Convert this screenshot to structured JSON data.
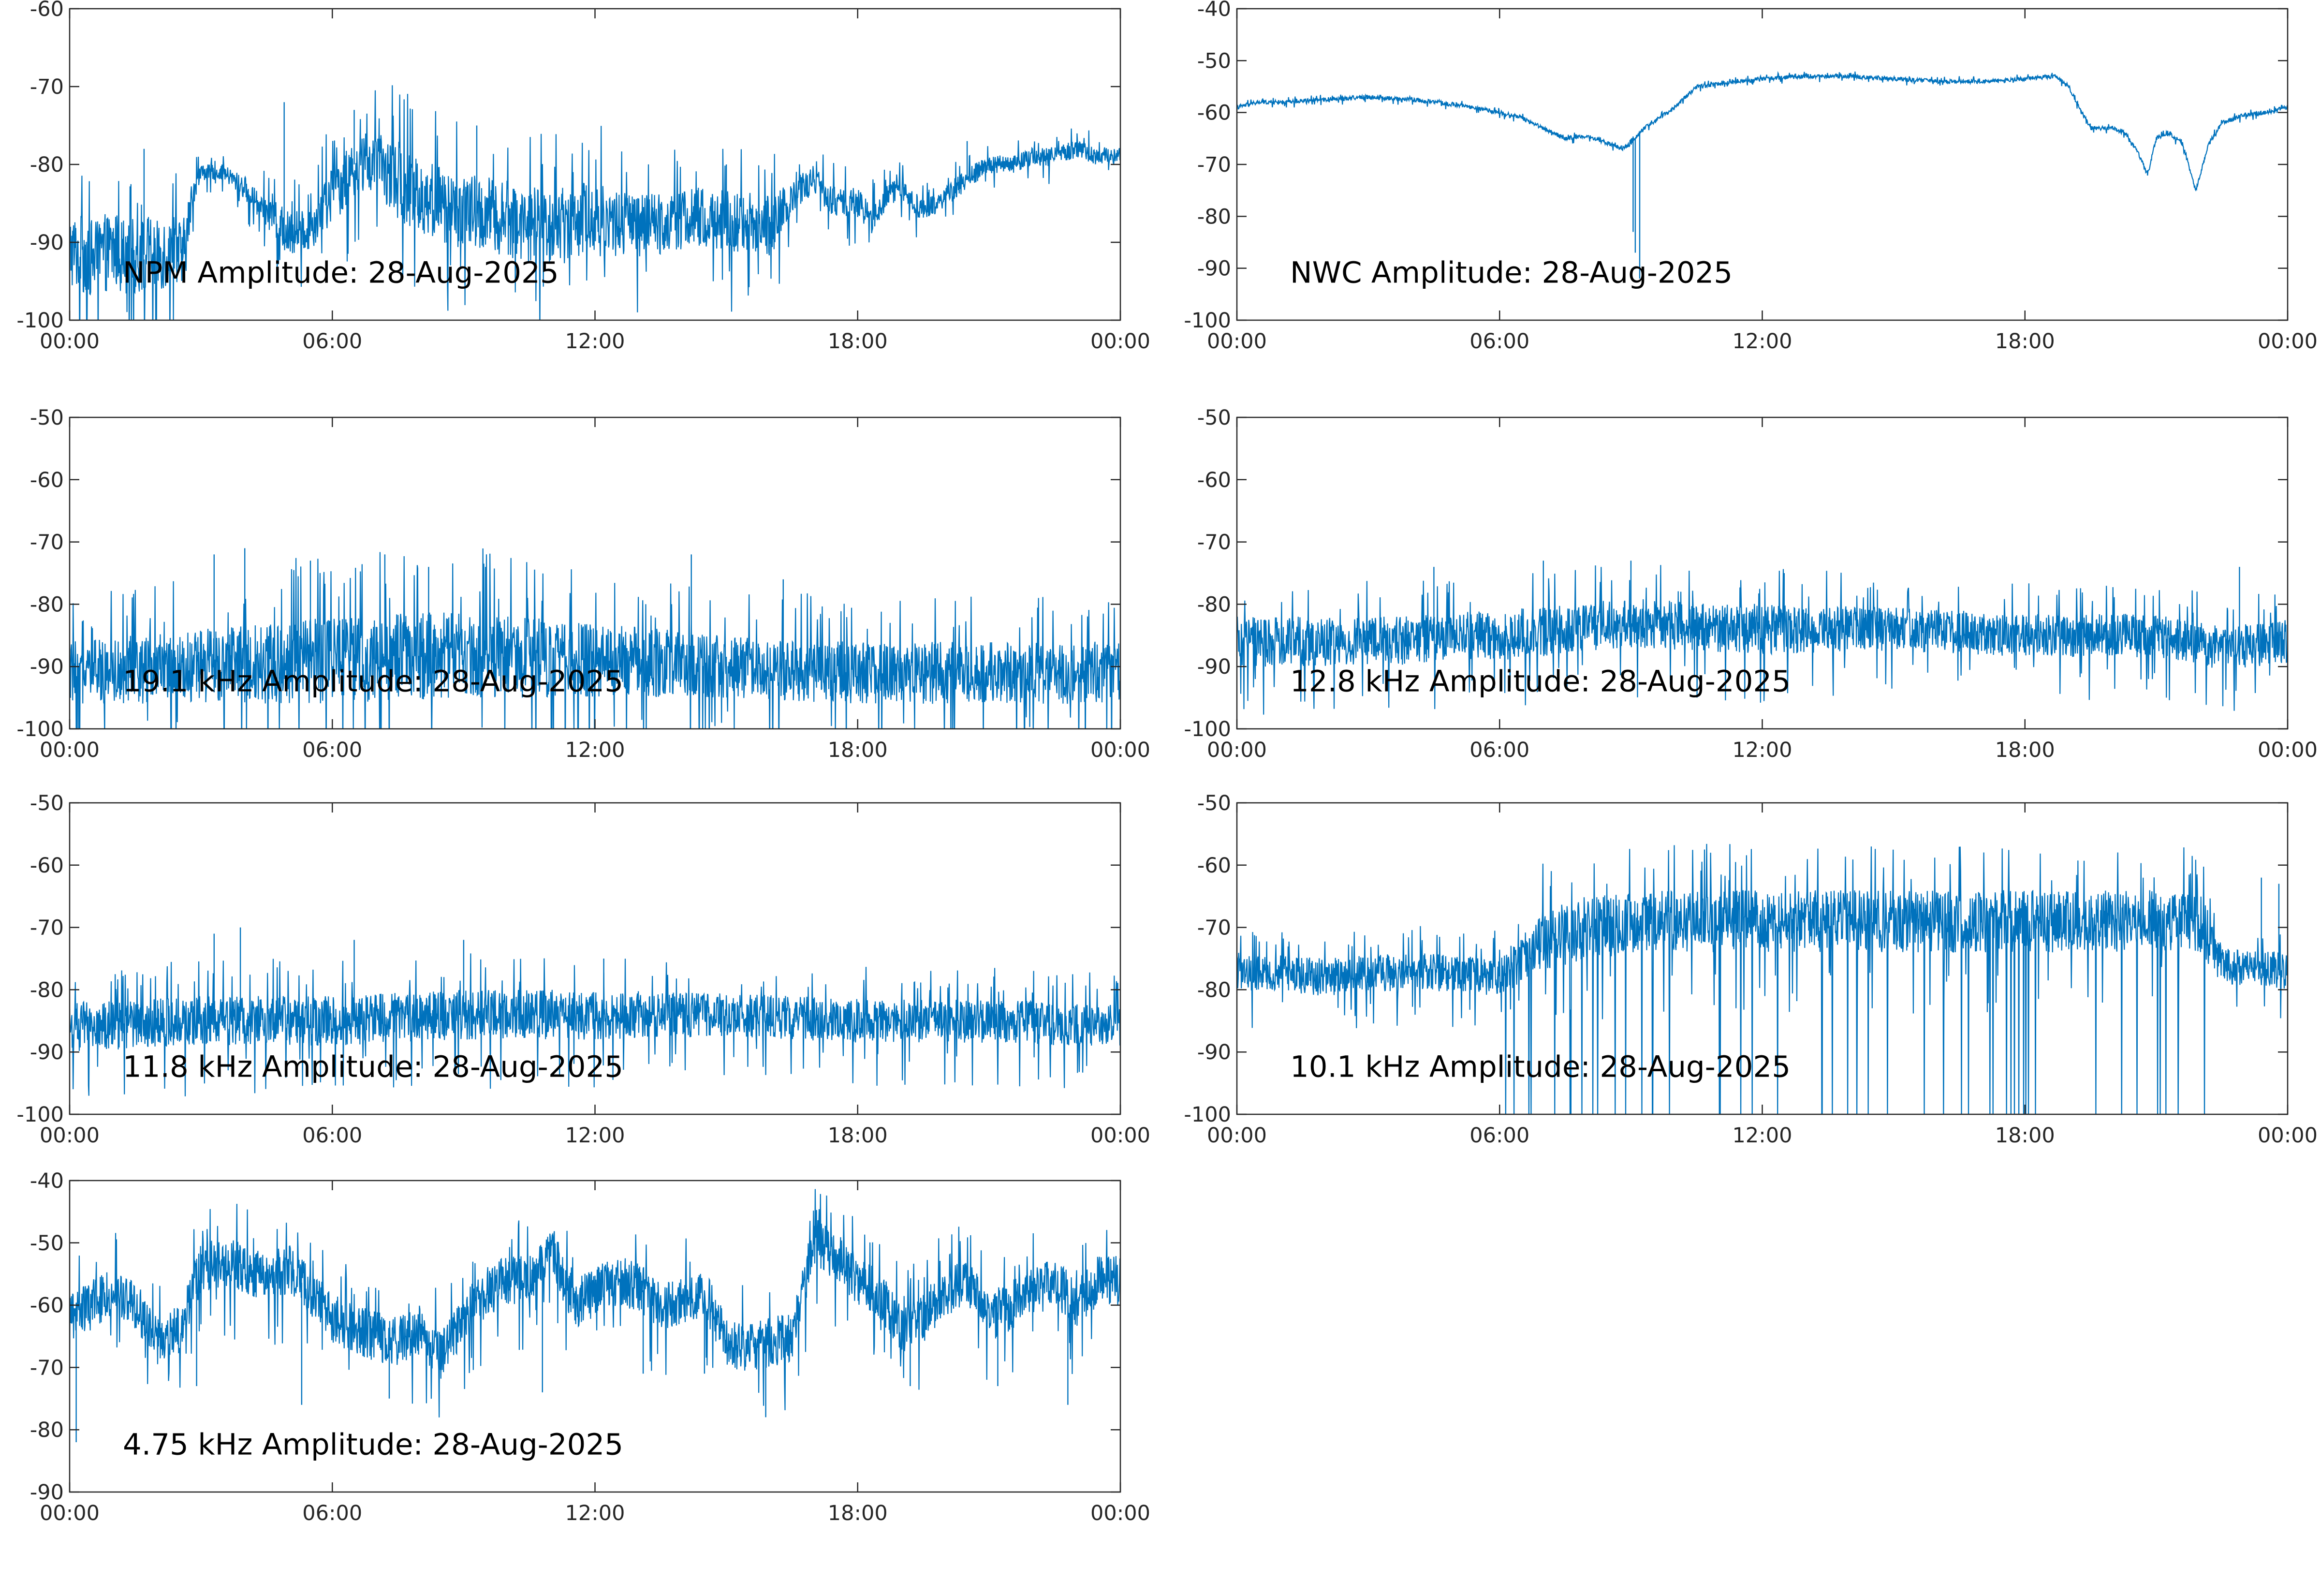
{
  "colors": {
    "series": "#0072BD",
    "axes": "#262626",
    "background": "#ffffff"
  },
  "chart_data": [
    {
      "type": "line",
      "annotation": "NPM Amplitude: 28-Aug-2025",
      "xlim": [
        0,
        24
      ],
      "xticks": [
        "00:00",
        "06:00",
        "12:00",
        "18:00",
        "00:00"
      ],
      "ylim": [
        -100,
        -60
      ],
      "yticks": [
        -100,
        -90,
        -80,
        -70,
        -60
      ],
      "grid": false,
      "series": [
        {
          "x": [
            0,
            0.5,
            1,
            1.5,
            2,
            2.6,
            2.8,
            3,
            3.5,
            4,
            4.5,
            5,
            5.5,
            6,
            6.5,
            7,
            7.5,
            8,
            8.5,
            9,
            10,
            11,
            12,
            13,
            14,
            15,
            16,
            16.5,
            17,
            17.5,
            18,
            18.3,
            18.7,
            19,
            19.5,
            20,
            20.5,
            21,
            21.5,
            22,
            22.5,
            23,
            23.5,
            24
          ],
          "y": [
            -91,
            -92,
            -91,
            -92,
            -91,
            -92,
            -84,
            -81,
            -81,
            -83,
            -86,
            -89,
            -88,
            -84,
            -80,
            -80,
            -82,
            -84,
            -85,
            -86,
            -87,
            -88,
            -87,
            -88,
            -87,
            -87,
            -88,
            -84,
            -82,
            -85,
            -85,
            -87,
            -84,
            -83,
            -86,
            -84,
            -82,
            -80,
            -80,
            -79,
            -79,
            -78,
            -79,
            -79
          ],
          "noise": [
            5,
            5,
            5,
            5,
            5,
            5,
            2,
            1,
            1,
            1.5,
            2,
            3,
            3,
            4,
            4,
            4,
            5,
            5,
            5,
            5,
            5,
            5,
            5,
            4,
            4,
            4,
            4,
            2,
            2,
            2,
            2,
            2,
            1.5,
            1.5,
            1.5,
            1.5,
            1.5,
            1.2,
            1.2,
            1.2,
            1.2,
            1.2,
            1.2,
            1.2
          ],
          "spikes": [
            [
              1.7,
              -78
            ],
            [
              4.9,
              -72
            ],
            [
              6.5,
              -73
            ],
            [
              9.3,
              -75
            ],
            [
              15,
              -80
            ],
            [
              20.5,
              -77
            ]
          ]
        }
      ]
    },
    {
      "type": "line",
      "annotation": "NWC Amplitude: 28-Aug-2025",
      "xlim": [
        0,
        24
      ],
      "xticks": [
        "00:00",
        "06:00",
        "12:00",
        "18:00",
        "00:00"
      ],
      "ylim": [
        -100,
        -40
      ],
      "yticks": [
        -100,
        -90,
        -80,
        -70,
        -60,
        -50,
        -40
      ],
      "grid": false,
      "series": [
        {
          "x": [
            0,
            0.5,
            1,
            2,
            3,
            4,
            5,
            6,
            6.5,
            7,
            7.5,
            8,
            8.5,
            8.8,
            9,
            9.1,
            9.2,
            9.3,
            9.5,
            10,
            10.5,
            11,
            11.5,
            12,
            13,
            14,
            15,
            16,
            17,
            18,
            18.7,
            19,
            19.3,
            19.5,
            20,
            20.3,
            20.6,
            20.8,
            21,
            21.3,
            21.6,
            21.9,
            22.2,
            22.5,
            23,
            23.5,
            24
          ],
          "y": [
            -59,
            -58,
            -58,
            -57.5,
            -57,
            -57.5,
            -58.5,
            -60,
            -61,
            -63,
            -65,
            -64.5,
            -66,
            -67,
            -66,
            -65,
            -64,
            -63,
            -62,
            -59,
            -55,
            -54.5,
            -54,
            -53.5,
            -53,
            -53,
            -53.5,
            -54,
            -54,
            -53.5,
            -53,
            -55,
            -60,
            -63,
            -63,
            -64,
            -68,
            -72,
            -65,
            -64,
            -66,
            -75,
            -66,
            -62,
            -60.5,
            -60,
            -59
          ],
          "noise": [
            0.4
          ],
          "spikes": [
            [
              9.05,
              -83
            ],
            [
              9.1,
              -87
            ],
            [
              9.2,
              -92
            ]
          ]
        }
      ]
    },
    {
      "type": "line",
      "annotation": "19.1 kHz Amplitude: 28-Aug-2025",
      "xlim": [
        0,
        24
      ],
      "xticks": [
        "00:00",
        "06:00",
        "12:00",
        "18:00",
        "00:00"
      ],
      "ylim": [
        -100,
        -50
      ],
      "yticks": [
        -100,
        -90,
        -80,
        -70,
        -60,
        -50
      ],
      "grid": false,
      "series": [
        {
          "x": [
            0,
            3,
            6,
            9,
            12,
            15,
            18,
            21,
            24
          ],
          "y": [
            -91,
            -90,
            -89,
            -88,
            -89,
            -90,
            -91,
            -91,
            -91
          ],
          "noise": [
            5,
            6,
            7,
            7,
            6,
            5,
            5,
            5,
            5
          ],
          "spikes": [
            [
              3.3,
              -72
            ],
            [
              4,
              -71
            ],
            [
              5.5,
              -73
            ],
            [
              7.2,
              -72
            ],
            [
              8.2,
              -74
            ],
            [
              9.5,
              -74
            ],
            [
              14.2,
              -72
            ],
            [
              16.3,
              -76
            ]
          ]
        }
      ]
    },
    {
      "type": "line",
      "annotation": "12.8 kHz Amplitude: 28-Aug-2025",
      "xlim": [
        0,
        24
      ],
      "xticks": [
        "00:00",
        "06:00",
        "12:00",
        "18:00",
        "00:00"
      ],
      "ylim": [
        -100,
        -50
      ],
      "yticks": [
        -100,
        -90,
        -80,
        -70,
        -60,
        -50
      ],
      "grid": false,
      "series": [
        {
          "x": [
            0,
            3,
            6,
            9,
            12,
            15,
            18,
            21,
            22.5,
            24
          ],
          "y": [
            -86,
            -86,
            -85,
            -83,
            -84,
            -84,
            -85,
            -85,
            -87,
            -86
          ],
          "noise": [
            4,
            4,
            4,
            4,
            4,
            3.5,
            3.5,
            3.5,
            3.5,
            3.5
          ],
          "spikes": [
            [
              4.5,
              -74
            ],
            [
              7,
              -73
            ],
            [
              9,
              -73
            ],
            [
              12.5,
              -75
            ],
            [
              22.9,
              -74
            ]
          ]
        }
      ]
    },
    {
      "type": "line",
      "annotation": "11.8 kHz Amplitude: 28-Aug-2025",
      "xlim": [
        0,
        24
      ],
      "xticks": [
        "00:00",
        "06:00",
        "12:00",
        "18:00",
        "00:00"
      ],
      "ylim": [
        -100,
        -50
      ],
      "yticks": [
        -100,
        -90,
        -80,
        -70,
        -60,
        -50
      ],
      "grid": false,
      "series": [
        {
          "x": [
            0,
            3,
            6,
            9,
            12,
            15,
            18,
            21,
            24
          ],
          "y": [
            -86,
            -85,
            -85,
            -84,
            -84,
            -84,
            -85,
            -85,
            -86
          ],
          "noise": [
            4,
            4,
            4,
            4,
            4,
            3.5,
            3.5,
            3.5,
            3.5
          ],
          "spikes": [
            [
              3.3,
              -71
            ],
            [
              3.9,
              -70
            ],
            [
              6.5,
              -72
            ],
            [
              9,
              -72
            ],
            [
              12.2,
              -75
            ]
          ]
        }
      ]
    },
    {
      "type": "line",
      "annotation": "10.1 kHz Amplitude: 28-Aug-2025",
      "xlim": [
        0,
        24
      ],
      "xticks": [
        "00:00",
        "06:00",
        "12:00",
        "18:00",
        "00:00"
      ],
      "ylim": [
        -100,
        -50
      ],
      "yticks": [
        -100,
        -90,
        -80,
        -70,
        -60,
        -50
      ],
      "grid": false,
      "series": [
        {
          "x": [
            0,
            2,
            4,
            6,
            7,
            8,
            10,
            12,
            14,
            16,
            18,
            20,
            22,
            22.5,
            24
          ],
          "y": [
            -77,
            -78,
            -77,
            -78,
            -72,
            -70,
            -69,
            -69,
            -69,
            -69,
            -69,
            -69,
            -69,
            -76,
            -77
          ],
          "noise": [
            3,
            3,
            3,
            3,
            5,
            5,
            5,
            5,
            5,
            5,
            5,
            5,
            5,
            3,
            3
          ],
          "spikes": [
            [
              23.4,
              -62
            ],
            [
              23.8,
              -63
            ]
          ]
        }
      ]
    },
    {
      "type": "line",
      "annotation": "4.75 kHz Amplitude: 28-Aug-2025",
      "xlim": [
        0,
        24
      ],
      "xticks": [
        "00:00",
        "06:00",
        "12:00",
        "18:00",
        "00:00"
      ],
      "ylim": [
        -90,
        -40
      ],
      "yticks": [
        -90,
        -80,
        -70,
        -60,
        -50,
        -40
      ],
      "grid": false,
      "series": [
        {
          "x": [
            0,
            0.5,
            1,
            1.5,
            2,
            2.5,
            3,
            3.5,
            4,
            4.5,
            5,
            5.5,
            6,
            6.5,
            7,
            7.5,
            8,
            8.5,
            9,
            9.5,
            10,
            10.5,
            11,
            11.5,
            12,
            12.5,
            13,
            13.5,
            14,
            14.5,
            15,
            15.5,
            16,
            16.5,
            17,
            17.5,
            18,
            18.5,
            19,
            19.5,
            20,
            20.5,
            21,
            21.5,
            22,
            22.5,
            23,
            23.5,
            24
          ],
          "y": [
            -62,
            -60,
            -58,
            -60,
            -66,
            -64,
            -54,
            -53,
            -54,
            -56,
            -54,
            -58,
            -62,
            -64,
            -65,
            -66,
            -64,
            -68,
            -62,
            -58,
            -56,
            -56,
            -50,
            -60,
            -58,
            -56,
            -57,
            -60,
            -59,
            -58,
            -66,
            -67,
            -66,
            -65,
            -50,
            -52,
            -56,
            -58,
            -64,
            -62,
            -58,
            -56,
            -62,
            -60,
            -58,
            -56,
            -60,
            -56,
            -56
          ],
          "noise": [
            4
          ],
          "spikes": [
            [
              0.15,
              -82
            ],
            [
              2.9,
              -73
            ],
            [
              5.3,
              -76
            ],
            [
              7.3,
              -75
            ],
            [
              10.8,
              -74
            ],
            [
              13.1,
              -71
            ],
            [
              14.5,
              -71
            ],
            [
              15.9,
              -78
            ],
            [
              19.2,
              -73
            ],
            [
              21.2,
              -73
            ],
            [
              22.8,
              -76
            ]
          ]
        }
      ]
    }
  ]
}
